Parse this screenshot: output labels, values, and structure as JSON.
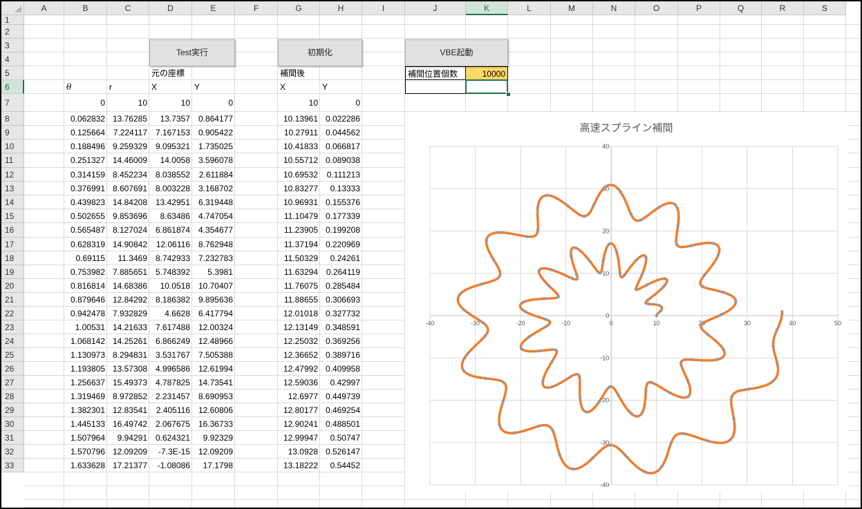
{
  "columns": [
    "A",
    "B",
    "C",
    "D",
    "E",
    "F",
    "G",
    "H",
    "I",
    "J",
    "K",
    "L",
    "M",
    "N",
    "O",
    "P",
    "Q",
    "R",
    "S"
  ],
  "selected_column": "K",
  "rows": [
    "1",
    "2",
    "3",
    "4",
    "5",
    "6",
    "7",
    "8",
    "9",
    "10",
    "11",
    "12",
    "13",
    "14",
    "15",
    "16",
    "17",
    "18",
    "19",
    "20",
    "21",
    "22",
    "23",
    "24",
    "25",
    "26",
    "27",
    "28",
    "29",
    "30",
    "31",
    "32",
    "33"
  ],
  "selected_row": "6",
  "buttons": {
    "test": "Test実行",
    "init": "初期化",
    "vbe": "VBE起動"
  },
  "labels": {
    "original_coords": "元の座標",
    "interpolated": "補間後",
    "interp_count_label": "補間位置個数",
    "interp_count_value": "10000",
    "theta": "θ",
    "r": "r",
    "x1": "X",
    "y1": "Y",
    "x2": "X",
    "y2": "Y"
  },
  "colors": {
    "accent": "#217346",
    "input_fill": "#ffd966",
    "series": "#ed7d31",
    "points": "#8e9aae"
  },
  "table": [
    [
      "0",
      "10",
      "10",
      "0",
      "10",
      "0"
    ],
    [
      "0.062832",
      "13.76285",
      "13.7357",
      "0.864177",
      "10.13961",
      "0.022286"
    ],
    [
      "0.125664",
      "7.224117",
      "7.167153",
      "0.905422",
      "10.27911",
      "0.044562"
    ],
    [
      "0.188496",
      "9.259329",
      "9.095321",
      "1.735025",
      "10.41833",
      "0.066817"
    ],
    [
      "0.251327",
      "14.46009",
      "14.0058",
      "3.596078",
      "10.55712",
      "0.089038"
    ],
    [
      "0.314159",
      "8.452234",
      "8.038552",
      "2.611884",
      "10.69532",
      "0.111213"
    ],
    [
      "0.376991",
      "8.607691",
      "8.003228",
      "3.168702",
      "10.83277",
      "0.13333"
    ],
    [
      "0.439823",
      "14.84208",
      "13.42951",
      "6.319448",
      "10.96931",
      "0.155376"
    ],
    [
      "0.502655",
      "9.853696",
      "8.63486",
      "4.747054",
      "11.10479",
      "0.177339"
    ],
    [
      "0.565487",
      "8.127024",
      "6.861874",
      "4.354677",
      "11.23905",
      "0.199208"
    ],
    [
      "0.628319",
      "14.90842",
      "12.06116",
      "8.762948",
      "11.37194",
      "0.220969"
    ],
    [
      "0.69115",
      "11.3469",
      "8.742933",
      "7.232783",
      "11.50329",
      "0.24261"
    ],
    [
      "0.753982",
      "7.885651",
      "5.748392",
      "5.3981",
      "11.63294",
      "0.264119"
    ],
    [
      "0.816814",
      "14.68386",
      "10.0518",
      "10.70407",
      "11.76075",
      "0.285484"
    ],
    [
      "0.879646",
      "12.84292",
      "8.186382",
      "9.895636",
      "11.88655",
      "0.306693"
    ],
    [
      "0.942478",
      "7.932829",
      "4.6628",
      "6.417794",
      "12.01018",
      "0.327732"
    ],
    [
      "1.00531",
      "14.21633",
      "7.617488",
      "12.00324",
      "12.13149",
      "0.348591"
    ],
    [
      "1.068142",
      "14.25261",
      "6.866249",
      "12.48966",
      "12.25032",
      "0.369256"
    ],
    [
      "1.130973",
      "8.294831",
      "3.531767",
      "7.505388",
      "12.36652",
      "0.389716"
    ],
    [
      "1.193805",
      "13.57308",
      "4.996586",
      "12.61994",
      "12.47992",
      "0.409958"
    ],
    [
      "1.256637",
      "15.49373",
      "4.787825",
      "14.73541",
      "12.59036",
      "0.42997"
    ],
    [
      "1.319469",
      "8.972852",
      "2.231457",
      "8.690953",
      "12.6977",
      "0.449739"
    ],
    [
      "1.382301",
      "12.83541",
      "2.405116",
      "12.60806",
      "12.80177",
      "0.469254"
    ],
    [
      "1.445133",
      "16.49742",
      "2.067675",
      "16.36733",
      "12.90241",
      "0.488501"
    ],
    [
      "1.507964",
      "9.94291",
      "0.624321",
      "9.92329",
      "12.99947",
      "0.50747"
    ],
    [
      "1.570796",
      "12.09209",
      "-7.3E-15",
      "12.09209",
      "13.0928",
      "0.526147"
    ],
    [
      "1.633628",
      "17.21377",
      "-1.08086",
      "17.1798",
      "13.18222",
      "0.54452"
    ]
  ],
  "chart_data": {
    "type": "scatter",
    "title": "高速スプライン補間",
    "xlim": [
      -40,
      50
    ],
    "ylim": [
      -40,
      40
    ],
    "xticks": [
      "-40",
      "-30",
      "-20",
      "-10",
      "0",
      "10",
      "20",
      "30",
      "40",
      "50"
    ],
    "yticks": [
      "40",
      "30",
      "20",
      "10",
      "0",
      "-10",
      "-20",
      "-30",
      "-40"
    ],
    "grid": true,
    "legend": "none",
    "series": [
      {
        "kind": "line",
        "color": "#ed7d31",
        "curve": {
          "r": "10 + t·0.6/π·... (spiral r ≈ 10+2.2·θ, amplitude ≈ 3.5, 13 lobes per turn)",
          "theta_end": 12.6
        }
      },
      {
        "kind": "markers",
        "color": "#8e9aae"
      }
    ]
  }
}
